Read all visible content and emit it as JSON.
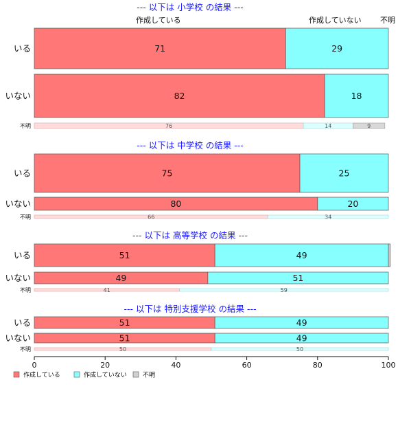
{
  "chart_data": {
    "type": "bar",
    "orientation": "horizontal",
    "stacked": "percent",
    "xlim": [
      0,
      100
    ],
    "xticks": [
      0,
      20,
      40,
      60,
      80,
      100
    ],
    "column_labels": [
      "作成している",
      "作成していない",
      "不明"
    ],
    "legend": [
      "作成している",
      "作成していない",
      "不明"
    ],
    "colors": {
      "full": [
        "#ff7777",
        "#88ffff",
        "#d0d0d0"
      ],
      "light": [
        "#ffdddd",
        "#ddffff",
        "#d8d8d8"
      ]
    },
    "groups": [
      {
        "title": "--- 以下は 小学校 の結果 ---",
        "rows": [
          {
            "label": "いる",
            "values": [
              71,
              29,
              0
            ]
          },
          {
            "label": "いない",
            "values": [
              82,
              18,
              0
            ]
          },
          {
            "label": "不明",
            "values": [
              76,
              14,
              9
            ]
          }
        ]
      },
      {
        "title": "--- 以下は 中学校 の結果 ---",
        "rows": [
          {
            "label": "いる",
            "values": [
              75,
              25,
              0
            ]
          },
          {
            "label": "いない",
            "values": [
              80,
              20,
              0
            ]
          },
          {
            "label": "不明",
            "values": [
              66,
              34,
              0
            ]
          }
        ]
      },
      {
        "title": "--- 以下は 高等学校 の結果 ---",
        "rows": [
          {
            "label": "いる",
            "values": [
              51,
              49,
              0.5
            ]
          },
          {
            "label": "いない",
            "values": [
              49,
              51,
              0
            ]
          },
          {
            "label": "不明",
            "values": [
              41,
              59,
              0
            ]
          }
        ]
      },
      {
        "title": "--- 以下は 特別支援学校 の結果 ---",
        "rows": [
          {
            "label": "いる",
            "values": [
              51,
              49,
              0
            ]
          },
          {
            "label": "いない",
            "values": [
              51,
              49,
              0
            ]
          },
          {
            "label": "不明",
            "values": [
              50,
              50,
              0
            ]
          }
        ]
      }
    ]
  }
}
